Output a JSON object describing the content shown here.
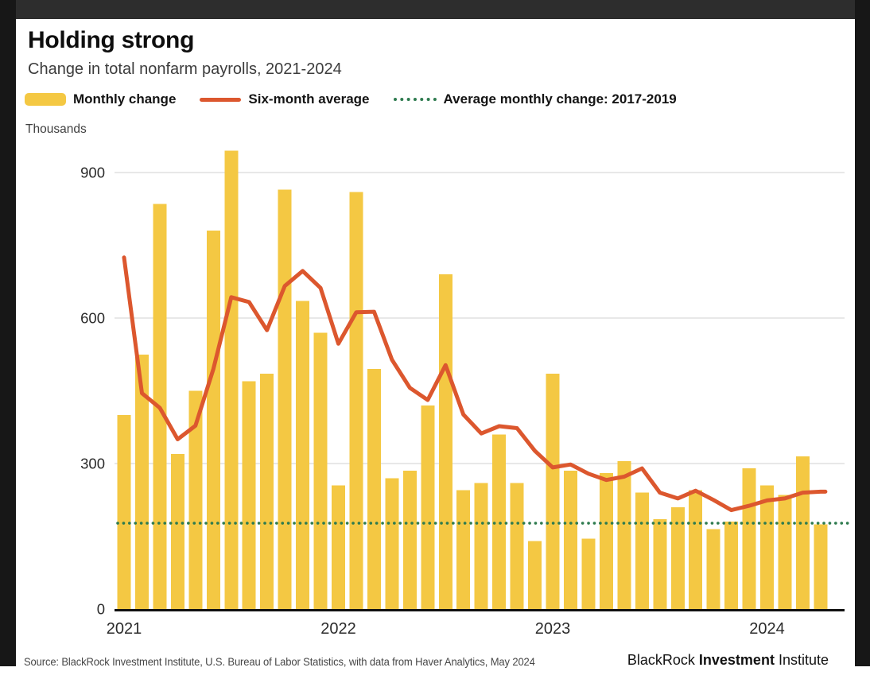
{
  "header": {
    "title": "Holding strong",
    "subtitle": "Change in total nonfarm payrolls, 2021-2024"
  },
  "legend": [
    {
      "label": "Monthly change",
      "color": "#F4C843"
    },
    {
      "label": "Six-month average",
      "color": "#DC572E"
    },
    {
      "label": "Average monthly change: 2017-2019",
      "color": "#2E7B4F"
    }
  ],
  "chart_data": {
    "type": "bar",
    "unit_label": "Thousands",
    "x": [
      "Jan 2021",
      "Feb 2021",
      "Mar 2021",
      "Apr 2021",
      "May 2021",
      "Jun 2021",
      "Jul 2021",
      "Aug 2021",
      "Sep 2021",
      "Oct 2021",
      "Nov 2021",
      "Dec 2021",
      "Jan 2022",
      "Feb 2022",
      "Mar 2022",
      "Apr 2022",
      "May 2022",
      "Jun 2022",
      "Jul 2022",
      "Aug 2022",
      "Sep 2022",
      "Oct 2022",
      "Nov 2022",
      "Dec 2022",
      "Jan 2023",
      "Feb 2023",
      "Mar 2023",
      "Apr 2023",
      "May 2023",
      "Jun 2023",
      "Jul 2023",
      "Aug 2023",
      "Sep 2023",
      "Oct 2023",
      "Nov 2023",
      "Dec 2023",
      "Jan 2024",
      "Feb 2024",
      "Mar 2024",
      "Apr 2024"
    ],
    "series": [
      {
        "name": "Monthly change",
        "type": "bar",
        "color": "#F4C843",
        "values": [
          400,
          525,
          835,
          320,
          450,
          780,
          945,
          470,
          485,
          865,
          635,
          570,
          255,
          860,
          495,
          270,
          285,
          420,
          690,
          245,
          260,
          360,
          260,
          140,
          485,
          285,
          145,
          280,
          305,
          240,
          185,
          210,
          245,
          165,
          180,
          290,
          255,
          235,
          315,
          175
        ]
      },
      {
        "name": "Six-month average",
        "type": "line",
        "color": "#DC572E",
        "values": [
          725,
          445,
          415,
          350,
          378,
          495,
          643,
          633,
          575,
          666,
          697,
          662,
          547,
          612,
          613,
          514,
          456,
          431,
          503,
          401,
          362,
          377,
          373,
          326,
          292,
          298,
          279,
          266,
          273,
          290,
          240,
          228,
          244,
          225,
          204,
          213,
          224,
          228,
          240,
          242
        ]
      },
      {
        "name": "Average monthly change: 2017-2019",
        "type": "reference-line",
        "color": "#2E7B4F",
        "value": 177
      }
    ],
    "y_ticks": [
      0,
      300,
      600,
      900
    ],
    "ylim": [
      0,
      980
    ],
    "x_year_ticks": [
      {
        "label": "2021",
        "month_index": 0
      },
      {
        "label": "2022",
        "month_index": 12
      },
      {
        "label": "2023",
        "month_index": 24
      },
      {
        "label": "2024",
        "month_index": 36
      }
    ],
    "grid": "horizontal",
    "legend_position": "top"
  },
  "footer": {
    "source": "Source: BlackRock Investment Institute, U.S. Bureau of Labor Statistics, with data from Haver Analytics, May 2024",
    "brand": {
      "part1": "BlackRock",
      "part2": "Investment",
      "part3": "Institute"
    }
  }
}
